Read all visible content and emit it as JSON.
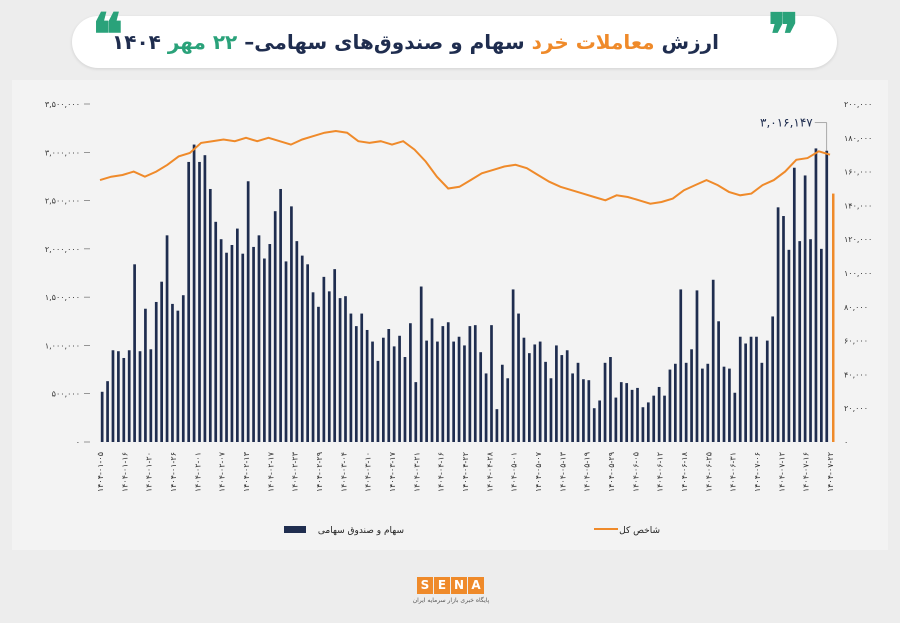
{
  "header": {
    "title_part1": "ارزش",
    "title_part2": "معاملات خرد",
    "title_part3": "سهام و صندوق‌های سهامی–",
    "title_part4": "۲۲ مهر",
    "title_part5": "۱۴۰۴"
  },
  "colors": {
    "bar": "#1f2d4f",
    "line": "#ef8a2a",
    "accent_green": "#2aa27a"
  },
  "chart_data": {
    "type": "bar",
    "y_left_ticks": [
      "۳,۵۰۰,۰۰۰",
      "۳,۰۰۰,۰۰۰",
      "۲,۵۰۰,۰۰۰",
      "۲,۰۰۰,۰۰۰",
      "۱,۵۰۰,۰۰۰",
      "۱,۰۰۰,۰۰۰",
      "۵۰۰,۰۰۰",
      "۰"
    ],
    "y_right_ticks": [
      "۲۰۰,۰۰۰",
      "۱۸۰,۰۰۰",
      "۱۶۰,۰۰۰",
      "۱۴۰,۰۰۰",
      "۱۲۰,۰۰۰",
      "۱۰۰,۰۰۰",
      "۸۰,۰۰۰",
      "۶۰,۰۰۰",
      "۴۰,۰۰۰",
      "۲۰,۰۰۰",
      "۰"
    ],
    "ylim_left": [
      0,
      3500000
    ],
    "ylim_right": [
      0,
      200000
    ],
    "x_labels": [
      "۱۴۰۴-۰۱-۰۵",
      "۱۴۰۴-۰۱-۱۶",
      "۱۴۰۴-۰۱-۲۰",
      "۱۴۰۴-۰۱-۲۶",
      "۱۴۰۴-۰۲-۰۱",
      "۱۴۰۴-۰۲-۰۷",
      "۱۴۰۴-۰۲-۱۳",
      "۱۴۰۴-۰۲-۱۷",
      "۱۴۰۴-۰۲-۲۳",
      "۱۴۰۴-۰۲-۲۹",
      "۱۴۰۴-۰۳-۰۴",
      "۱۴۰۴-۰۳-۱۰",
      "۱۴۰۴-۰۳-۱۷",
      "۱۴۰۴-۰۳-۲۱",
      "۱۴۰۴-۰۴-۱۶",
      "۱۴۰۴-۰۴-۲۲",
      "۱۴۰۴-۰۴-۲۸",
      "۱۴۰۴-۰۵-۰۱",
      "۱۴۰۴-۰۵-۰۷",
      "۱۴۰۴-۰۵-۱۳",
      "۱۴۰۴-۰۵-۱۹",
      "۱۴۰۴-۰۵-۲۹",
      "۱۴۰۴-۰۶-۰۵",
      "۱۴۰۴-۰۶-۱۲",
      "۱۴۰۴-۰۶-۱۸",
      "۱۴۰۴-۰۶-۲۵",
      "۱۴۰۴-۰۶-۳۱",
      "۱۴۰۴-۰۷-۰۶",
      "۱۴۰۴-۰۷-۱۲",
      "۱۴۰۴-۰۷-۱۶",
      "۱۴۰۴-۰۷-۲۲"
    ],
    "series": [
      {
        "name": "سهام و صندوق سهامی",
        "axis": "left",
        "values": [
          520000,
          630000,
          950000,
          940000,
          870000,
          950000,
          1840000,
          940000,
          1380000,
          960000,
          1450000,
          1660000,
          2140000,
          1430000,
          1360000,
          1520000,
          2900000,
          3080000,
          2900000,
          2970000,
          2620000,
          2280000,
          2100000,
          1960000,
          2040000,
          2210000,
          1950000,
          2700000,
          2020000,
          2140000,
          1900000,
          2050000,
          2390000,
          2620000,
          1870000,
          2440000,
          2080000,
          1930000,
          1840000,
          1550000,
          1400000,
          1710000,
          1560000,
          1790000,
          1490000,
          1510000,
          1330000,
          1200000,
          1330000,
          1160000,
          1040000,
          840000,
          1080000,
          1170000,
          990000,
          1100000,
          880000,
          1230000,
          620000,
          1610000,
          1050000,
          1280000,
          1040000,
          1200000,
          1240000,
          1040000,
          1090000,
          1000000,
          1200000,
          1210000,
          930000,
          710000,
          1210000,
          340000,
          800000,
          660000,
          1580000,
          1330000,
          1080000,
          920000,
          1010000,
          1040000,
          830000,
          660000,
          1000000,
          900000,
          950000,
          710000,
          820000,
          650000,
          640000,
          350000,
          430000,
          820000,
          880000,
          460000,
          620000,
          610000,
          540000,
          560000,
          360000,
          410000,
          480000,
          570000,
          480000,
          750000,
          810000,
          1580000,
          820000,
          960000,
          1570000,
          760000,
          810000,
          1680000,
          1250000,
          780000,
          760000,
          510000,
          1090000,
          1020000,
          1090000,
          1090000,
          820000,
          1050000,
          1300000,
          2430000,
          2340000,
          1990000,
          2840000,
          2080000,
          2760000,
          2100000,
          3040000,
          2000000,
          3016147
        ],
        "max_label": "۳,۰۱۶,۱۴۷"
      },
      {
        "name": "شاخص کل",
        "axis": "right",
        "values": [
          155000,
          157000,
          158000,
          160000,
          157000,
          160000,
          164000,
          169000,
          171000,
          177000,
          178000,
          179000,
          178000,
          180000,
          178000,
          180000,
          178000,
          176000,
          179000,
          181000,
          183000,
          184000,
          183000,
          178000,
          177000,
          178000,
          176000,
          178000,
          173000,
          166000,
          157000,
          150000,
          151000,
          155000,
          159000,
          161000,
          163000,
          164000,
          162000,
          158000,
          154000,
          151000,
          149000,
          147000,
          145000,
          143000,
          146000,
          145000,
          143000,
          141000,
          142000,
          144000,
          149000,
          152000,
          155000,
          152000,
          148000,
          146000,
          147000,
          152000,
          155000,
          160000,
          167000,
          168000,
          172000,
          170000
        ]
      }
    ],
    "legend": [
      {
        "label": "سهام و صندوق سهامی",
        "color": "#1f2d4f"
      },
      {
        "label": "شاخص کل",
        "color": "#ef8a2a"
      }
    ]
  },
  "logo": {
    "letters": [
      "S",
      "E",
      "N",
      "A"
    ],
    "subtitle": "پایگاه خبری بازار سرمایه ایران"
  }
}
